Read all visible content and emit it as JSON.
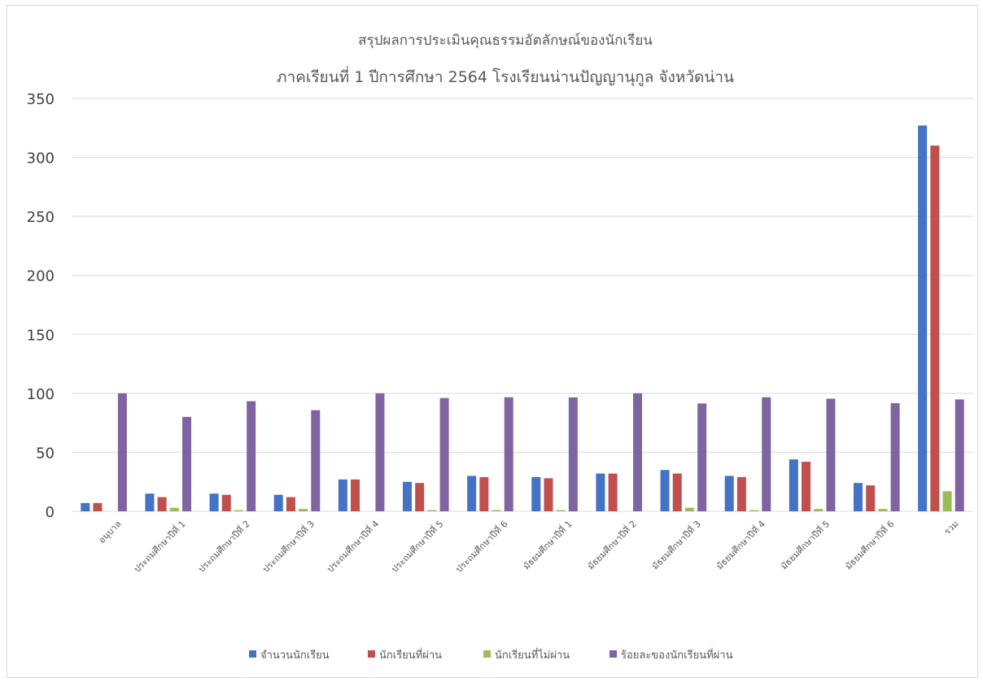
{
  "chart_data": {
    "type": "bar",
    "title_line1": "สรุปผลการประเมินคุณธรรมอัตลักษณ์ของนักเรียน",
    "title_line2": "ภาคเรียนที่ 1 ปีการศึกษา 2564 โรงเรียนน่านปัญญานุกูล จังหวัดน่าน",
    "categories": [
      "อนุบาล",
      "ประถมศึกษาปีที่ 1",
      "ประถมศึกษาปีที่ 2",
      "ประถมศึกษาปีที่ 3",
      "ประถมศึกษาปีที่ 4",
      "ประถมศึกษาปีที่ 5",
      "ประถมศึกษาปีที่ 6",
      "มัธยมศึกษาปีที่ 1",
      "มัธยมศึกษาปีที่ 2",
      "มัธยมศึกษาปีที่ 3",
      "มัธยมศึกษาปีที่ 4",
      "มัธยมศึกษาปีที่ 5",
      "มัธยมศึกษาปีที่ 6",
      "รวม"
    ],
    "series": [
      {
        "name": "จำนวนนักเรียน",
        "color": "#4472c4",
        "values": [
          7,
          15,
          15,
          14,
          27,
          25,
          30,
          29,
          32,
          35,
          30,
          44,
          24,
          327
        ]
      },
      {
        "name": "นักเรียนที่ผ่าน",
        "color": "#c0504d",
        "values": [
          7,
          12,
          14,
          12,
          27,
          24,
          29,
          28,
          32,
          32,
          29,
          42,
          22,
          310
        ]
      },
      {
        "name": "นักเรียนที่ไม่ผ่าน",
        "color": "#9bbb59",
        "values": [
          0,
          3,
          1,
          2,
          0,
          1,
          1,
          1,
          0,
          3,
          1,
          2,
          2,
          17
        ]
      },
      {
        "name": "ร้อยละของนักเรียนที่ผ่าน",
        "color": "#8064a2",
        "values": [
          100,
          80,
          93.33,
          85.71,
          100,
          96,
          96.67,
          96.55,
          100,
          91.43,
          96.67,
          95.45,
          91.67,
          94.8
        ]
      }
    ],
    "ylim": [
      0,
      350
    ],
    "yticks": [
      0,
      50,
      100,
      150,
      200,
      250,
      300,
      350
    ],
    "grid": true,
    "legend": "bottom"
  }
}
